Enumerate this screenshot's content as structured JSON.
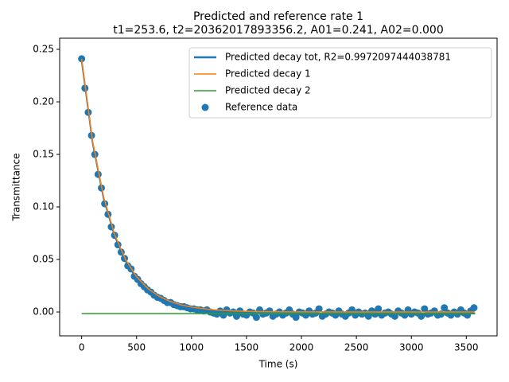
{
  "chart_data": {
    "type": "line",
    "title": "Predicted and reference rate 1",
    "subtitle": "t1=253.6, t2=20362017893356.2, A01=0.241, A02=0.000",
    "x_label": "Time (s)",
    "y_label": "Transmittance",
    "xlim": [
      -200,
      3780
    ],
    "ylim": [
      -0.0227,
      0.2606
    ],
    "xticks": [
      0,
      500,
      1000,
      1500,
      2000,
      2500,
      3000,
      3500
    ],
    "yticks": [
      {
        "value": 0,
        "label": "0.00"
      },
      {
        "value": 0.05,
        "label": "0.05"
      },
      {
        "value": 0.1,
        "label": "0.10"
      },
      {
        "value": 0.15,
        "label": "0.15"
      },
      {
        "value": 0.2,
        "label": "0.20"
      },
      {
        "value": 0.25,
        "label": "0.25"
      }
    ],
    "legend": "upper right",
    "x": [
      0,
      100,
      200,
      300,
      400,
      500,
      600,
      700,
      800,
      900,
      1000,
      1100,
      1200,
      1300,
      1400,
      1500,
      1600,
      1700,
      1800,
      1900,
      2000,
      2500,
      3000,
      3580
    ],
    "series": [
      {
        "name": "Predicted decay tot, R2=0.9972097444038781",
        "color": "#1f77b4",
        "kind": "line",
        "values": [
          0.2395,
          0.161,
          0.1081,
          0.0724,
          0.0483,
          0.0321,
          0.0211,
          0.0138,
          0.0088,
          0.0054,
          0.0032,
          0.0017,
          0.0006,
          -0.0001,
          -0.0005,
          -0.0009,
          -0.0011,
          -0.0012,
          -0.0013,
          -0.0014,
          -0.0014,
          -0.0015,
          -0.0015,
          -0.0015
        ]
      },
      {
        "name": "Predicted decay 1",
        "color": "#ff7f0e",
        "kind": "line",
        "values": [
          0.241,
          0.1625,
          0.1096,
          0.0739,
          0.0498,
          0.0336,
          0.0226,
          0.0153,
          0.0103,
          0.0069,
          0.0047,
          0.0032,
          0.0021,
          0.0014,
          0.001,
          0.0006,
          0.0004,
          0.0003,
          0.0002,
          0.0001,
          0.0001,
          0,
          0,
          0
        ]
      },
      {
        "name": "Predicted decay 2",
        "color": "#2ca02c",
        "kind": "line",
        "values": [
          -0.0015,
          -0.0015,
          -0.0015,
          -0.0015,
          -0.0015,
          -0.0015,
          -0.0015,
          -0.0015,
          -0.0015,
          -0.0015,
          -0.0015,
          -0.0015,
          -0.0015,
          -0.0015,
          -0.0015,
          -0.0015,
          -0.0015,
          -0.0015,
          -0.0015,
          -0.0015,
          -0.0015,
          -0.0015,
          -0.0015,
          -0.0015
        ]
      },
      {
        "name": "Reference data",
        "color": "#1f77b4",
        "kind": "scatter",
        "x": [
          0,
          30,
          60,
          90,
          120,
          150,
          180,
          210,
          240,
          270,
          300,
          330,
          360,
          390,
          420,
          450,
          480,
          510,
          540,
          570,
          600,
          630,
          660,
          690,
          720,
          750,
          780,
          810,
          840,
          870,
          900,
          930,
          960,
          990,
          1020,
          1050,
          1080,
          1110,
          1140,
          1170,
          1200,
          1230,
          1260,
          1290,
          1320,
          1350,
          1380,
          1410,
          1440,
          1470,
          1500,
          1530,
          1560,
          1590,
          1620,
          1650,
          1680,
          1710,
          1740,
          1770,
          1800,
          1830,
          1860,
          1890,
          1920,
          1950,
          1980,
          2010,
          2040,
          2070,
          2100,
          2130,
          2160,
          2190,
          2220,
          2250,
          2280,
          2310,
          2340,
          2370,
          2400,
          2430,
          2460,
          2490,
          2520,
          2550,
          2580,
          2610,
          2640,
          2670,
          2700,
          2730,
          2760,
          2790,
          2820,
          2850,
          2880,
          2910,
          2940,
          2970,
          3000,
          3030,
          3060,
          3090,
          3120,
          3150,
          3180,
          3210,
          3240,
          3270,
          3300,
          3330,
          3360,
          3390,
          3420,
          3450,
          3480,
          3510,
          3540,
          3570
        ],
        "values": [
          0.241,
          0.213,
          0.19,
          0.168,
          0.15,
          0.131,
          0.118,
          0.103,
          0.093,
          0.081,
          0.073,
          0.064,
          0.057,
          0.051,
          0.044,
          0.041,
          0.034,
          0.031,
          0.027,
          0.024,
          0.021,
          0.019,
          0.016,
          0.014,
          0.013,
          0.011,
          0.009,
          0.009,
          0.007,
          0.006,
          0.005,
          0.005,
          0.004,
          0.003,
          0.003,
          0.002,
          0.002,
          0.001,
          0.002,
          0,
          -0.001,
          -0.002,
          0.001,
          -0.003,
          0.002,
          -0.001,
          0,
          -0.004,
          0.001,
          -0.002,
          -0.003,
          0,
          -0.001,
          -0.005,
          0.002,
          -0.002,
          -0.001,
          0.001,
          -0.004,
          -0.002,
          0,
          -0.003,
          -0.001,
          0.002,
          -0.002,
          -0.005,
          0,
          -0.001,
          -0.003,
          0.001,
          -0.002,
          -0.001,
          0.003,
          -0.004,
          -0.002,
          0,
          -0.001,
          -0.003,
          0.001,
          -0.002,
          -0.004,
          -0.001,
          0.002,
          -0.003,
          0,
          -0.002,
          -0.001,
          -0.004,
          0.001,
          -0.002,
          0.003,
          -0.003,
          -0.001,
          0,
          -0.002,
          -0.004,
          0.001,
          -0.001,
          -0.003,
          0.002,
          -0.002,
          0,
          -0.001,
          -0.004,
          0.003,
          -0.002,
          -0.001,
          0.001,
          -0.003,
          -0.002,
          0.004,
          -0.001,
          -0.003,
          0,
          -0.002,
          0.002,
          -0.001,
          -0.003,
          0.001,
          0.004
        ]
      }
    ]
  }
}
